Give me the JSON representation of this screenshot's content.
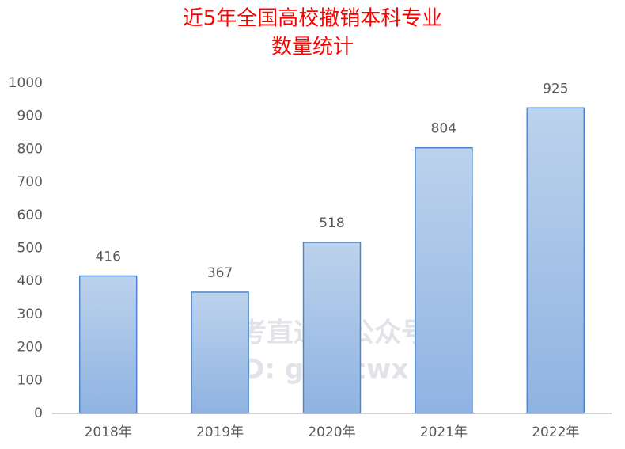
{
  "chart_data": {
    "type": "bar",
    "title": [
      "近5年全国高校撤销本科专业",
      "数量统计"
    ],
    "categories": [
      "2018年",
      "2019年",
      "2020年",
      "2021年",
      "2022年"
    ],
    "values": [
      416,
      367,
      518,
      804,
      925
    ],
    "color": "#9dbde6",
    "ylim": [
      0,
      1000
    ],
    "yticks": [
      0,
      100,
      200,
      300,
      400,
      500,
      600,
      700,
      800,
      900,
      1000
    ],
    "grid": false,
    "watermark": [
      "高考直通车公众号",
      "ID: gkztcwx"
    ]
  }
}
